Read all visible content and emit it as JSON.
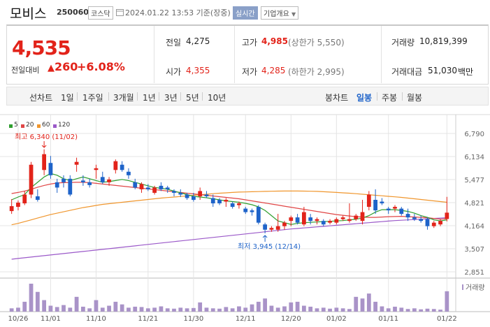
{
  "header": {
    "name": "모비스",
    "code": "250060",
    "market": "코스닥",
    "datetime": "2024.01.22 13:53 기준(장중)",
    "realtime_label": "실시간",
    "company_info_label": "기업개요"
  },
  "price": {
    "current": "4,535",
    "change_label": "전일대비",
    "change_value": "260",
    "change_pct": "+6.08%",
    "up_color": "#e2231a",
    "down_color": "#1e63c9"
  },
  "stats": {
    "prev_close": {
      "label": "전일",
      "value": "4,275"
    },
    "high": {
      "label": "고가",
      "value": "4,985",
      "sub": "(상한가 5,550)"
    },
    "volume": {
      "label": "거래량",
      "value": "10,819,399"
    },
    "open": {
      "label": "시가",
      "value": "4,355"
    },
    "low": {
      "label": "저가",
      "value": "4,285",
      "sub": "(하한가 2,995)"
    },
    "amount": {
      "label": "거래대금",
      "value": "51,030",
      "unit": "백만"
    }
  },
  "periods": {
    "line_chart": "선차트",
    "items": [
      "1일",
      "1주일",
      "3개월",
      "1년",
      "3년",
      "5년",
      "10년"
    ],
    "candle_chart": "봉차트",
    "candle_items": [
      "일봉",
      "주봉",
      "월봉"
    ],
    "selected_candle": "일봉"
  },
  "chart_data": {
    "type": "candlestick",
    "legend": [
      {
        "name": "5",
        "color": "#2e9e2e"
      },
      {
        "name": "20",
        "color": "#e04646"
      },
      {
        "name": "60",
        "color": "#f0962d"
      },
      {
        "name": "120",
        "color": "#9b59c9"
      }
    ],
    "y_ticks": [
      "6,790",
      "6,134",
      "5,477",
      "4,821",
      "4,164",
      "3,507",
      "2,851"
    ],
    "ylim": [
      2851,
      6790
    ],
    "x_ticks": [
      "10/26",
      "11/01",
      "11/10",
      "11/21",
      "11/30",
      "12/11",
      "12/20",
      "01/02",
      "01/11",
      "01/22"
    ],
    "annotation_high": "최고 6,340 (11/02)",
    "annotation_low": "최저 3,945 (12/14)",
    "volume_label": "거래량",
    "candles": [
      [
        4580,
        4920,
        4500,
        4720
      ],
      [
        4700,
        4880,
        4600,
        4820
      ],
      [
        4800,
        5150,
        4750,
        5050
      ],
      [
        5050,
        5980,
        4950,
        5900
      ],
      [
        5000,
        5200,
        4850,
        4900
      ],
      [
        5750,
        6340,
        5600,
        6200
      ],
      [
        5950,
        6150,
        5500,
        5600
      ],
      [
        5400,
        5500,
        5100,
        5250
      ],
      [
        5500,
        5600,
        5250,
        5400
      ],
      [
        5500,
        5600,
        5000,
        5050
      ],
      [
        5900,
        6100,
        5700,
        5980
      ],
      [
        5450,
        5600,
        5300,
        5400
      ],
      [
        5400,
        5500,
        5250,
        5320
      ],
      [
        5750,
        5900,
        5500,
        5800
      ],
      [
        5550,
        5700,
        5350,
        5400
      ],
      [
        5400,
        5550,
        5300,
        5480
      ],
      [
        5750,
        6050,
        5650,
        6000
      ],
      [
        5900,
        6000,
        5700,
        5750
      ],
      [
        5700,
        5800,
        5500,
        5600
      ],
      [
        5400,
        5500,
        5200,
        5250
      ],
      [
        5200,
        5400,
        5100,
        5350
      ],
      [
        5250,
        5350,
        5150,
        5200
      ],
      [
        5100,
        5300,
        5050,
        5250
      ],
      [
        5300,
        5400,
        5150,
        5200
      ],
      [
        5250,
        5300,
        5100,
        5200
      ],
      [
        5150,
        5200,
        5000,
        5100
      ],
      [
        5100,
        5200,
        4980,
        5050
      ],
      [
        5050,
        5100,
        4900,
        4950
      ],
      [
        5000,
        5100,
        4850,
        4900
      ],
      [
        5000,
        5250,
        4900,
        5150
      ],
      [
        5050,
        5150,
        4950,
        5000
      ],
      [
        4950,
        5050,
        4700,
        4800
      ],
      [
        4900,
        4950,
        4750,
        4800
      ],
      [
        4850,
        4950,
        4700,
        4900
      ],
      [
        4800,
        4850,
        4650,
        4700
      ],
      [
        4750,
        4850,
        4650,
        4800
      ],
      [
        4650,
        4700,
        4500,
        4550
      ],
      [
        4600,
        4650,
        4450,
        4550
      ],
      [
        4700,
        4750,
        4200,
        4250
      ],
      [
        4200,
        4250,
        3945,
        4050
      ],
      [
        4050,
        4150,
        3990,
        4100
      ],
      [
        4050,
        4500,
        3990,
        4150
      ],
      [
        4150,
        4300,
        4050,
        4250
      ],
      [
        4300,
        4450,
        4150,
        4400
      ],
      [
        4400,
        4500,
        4200,
        4250
      ],
      [
        4200,
        4700,
        4150,
        4550
      ],
      [
        4400,
        4500,
        4200,
        4300
      ],
      [
        4300,
        4400,
        4200,
        4350
      ],
      [
        4300,
        4350,
        4150,
        4200
      ],
      [
        4250,
        4350,
        4200,
        4300
      ],
      [
        4250,
        4400,
        4200,
        4350
      ],
      [
        4350,
        4450,
        4300,
        4400
      ],
      [
        4300,
        4800,
        4250,
        4350
      ],
      [
        4350,
        4500,
        4300,
        4450
      ],
      [
        4300,
        4900,
        4200,
        4550
      ],
      [
        4700,
        5150,
        4600,
        5050
      ],
      [
        4900,
        5200,
        4500,
        4600
      ],
      [
        4850,
        4950,
        4750,
        4800
      ],
      [
        4650,
        4700,
        4500,
        4600
      ],
      [
        4650,
        4750,
        4550,
        4700
      ],
      [
        4650,
        4700,
        4450,
        4500
      ],
      [
        4500,
        4650,
        4300,
        4400
      ],
      [
        4400,
        4500,
        4300,
        4350
      ],
      [
        4350,
        4450,
        4250,
        4300
      ],
      [
        4350,
        4400,
        4050,
        4150
      ],
      [
        4150,
        4300,
        4100,
        4250
      ],
      [
        4200,
        4350,
        4150,
        4300
      ],
      [
        4355,
        4985,
        4285,
        4535
      ]
    ],
    "ma5": [
      4900,
      4980,
      5050,
      5250,
      5400,
      5550,
      5650,
      5600,
      5500,
      5450,
      5500,
      5550,
      5500,
      5450,
      5400,
      5420,
      5450,
      5480,
      5450,
      5400,
      5350,
      5300,
      5250,
      5230,
      5200,
      5150,
      5100,
      5050,
      5000,
      4980,
      4960,
      4930,
      4900,
      4870,
      4850,
      4830,
      4800,
      4760,
      4700,
      4600,
      4450,
      4300,
      4250,
      4200,
      4230,
      4250,
      4260,
      4270,
      4280,
      4290,
      4300,
      4310,
      4330,
      4350,
      4380,
      4450,
      4550,
      4620,
      4620,
      4620,
      4600,
      4570,
      4520,
      4450,
      4400,
      4330,
      4300,
      4330
    ],
    "ma20": [
      5080,
      5110,
      5150,
      5200,
      5260,
      5310,
      5350,
      5380,
      5390,
      5395,
      5400,
      5400,
      5390,
      5370,
      5350,
      5330,
      5310,
      5290,
      5270,
      5250,
      5230,
      5210,
      5190,
      5170,
      5150,
      5130,
      5110,
      5090,
      5070,
      5050,
      5030,
      5010,
      4990,
      4970,
      4950,
      4930,
      4900,
      4870,
      4840,
      4810,
      4780,
      4750,
      4720,
      4690,
      4660,
      4630,
      4600,
      4570,
      4540,
      4510,
      4480,
      4460,
      4440,
      4420,
      4410,
      4400,
      4400,
      4410,
      4420,
      4425,
      4430,
      4420,
      4410,
      4400,
      4390,
      4370,
      4350,
      4360
    ],
    "ma60": [
      4190,
      4230,
      4280,
      4330,
      4380,
      4430,
      4480,
      4520,
      4560,
      4600,
      4640,
      4680,
      4710,
      4740,
      4770,
      4790,
      4810,
      4830,
      4850,
      4870,
      4890,
      4910,
      4930,
      4950,
      4965,
      4980,
      4995,
      5010,
      5030,
      5045,
      5060,
      5075,
      5090,
      5100,
      5110,
      5120,
      5125,
      5130,
      5135,
      5140,
      5145,
      5148,
      5150,
      5150,
      5150,
      5148,
      5145,
      5140,
      5130,
      5120,
      5110,
      5100,
      5090,
      5075,
      5060,
      5045,
      5030,
      5015,
      5000,
      4985,
      4970,
      4950,
      4930,
      4910,
      4890,
      4870,
      4850,
      4830
    ],
    "ma120": [
      3210,
      3230,
      3250,
      3270,
      3290,
      3310,
      3330,
      3350,
      3370,
      3390,
      3410,
      3430,
      3450,
      3470,
      3490,
      3510,
      3530,
      3550,
      3570,
      3590,
      3610,
      3630,
      3650,
      3670,
      3690,
      3710,
      3730,
      3750,
      3770,
      3790,
      3810,
      3830,
      3850,
      3870,
      3890,
      3910,
      3930,
      3950,
      3970,
      3990,
      4010,
      4030,
      4050,
      4070,
      4085,
      4100,
      4115,
      4130,
      4145,
      4160,
      4175,
      4190,
      4205,
      4220,
      4235,
      4250,
      4265,
      4280,
      4295,
      4310,
      4320,
      4330,
      4340,
      4350,
      4360,
      4370,
      4380,
      4390
    ],
    "volumes": [
      10,
      12,
      30,
      85,
      60,
      35,
      18,
      14,
      20,
      12,
      45,
      15,
      10,
      35,
      12,
      18,
      30,
      22,
      12,
      15,
      14,
      10,
      12,
      16,
      10,
      9,
      12,
      10,
      11,
      28,
      12,
      10,
      9,
      14,
      10,
      16,
      12,
      22,
      30,
      40,
      18,
      12,
      16,
      28,
      30,
      18,
      15,
      10,
      12,
      9,
      12,
      10,
      8,
      45,
      40,
      55,
      30,
      16,
      10,
      15,
      12,
      8,
      10,
      7,
      9,
      8,
      6,
      62
    ]
  }
}
